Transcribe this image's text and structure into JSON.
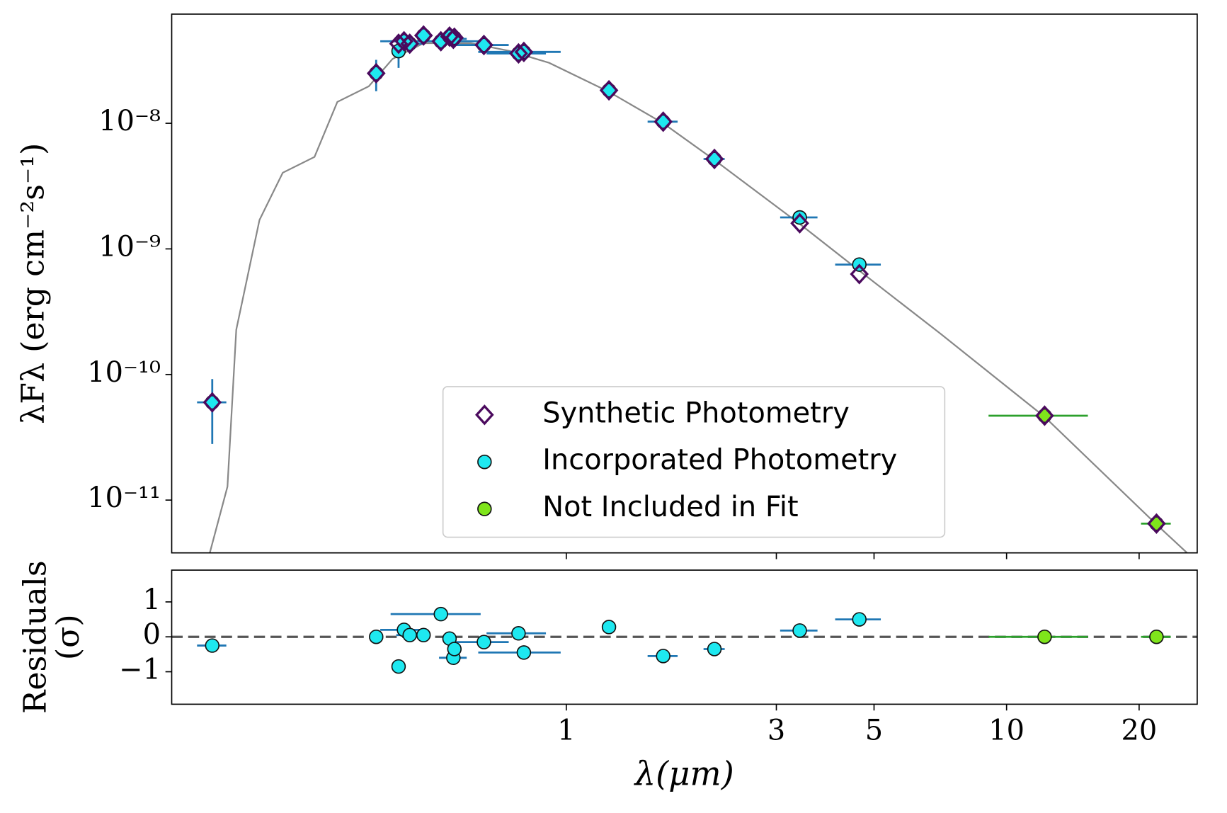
{
  "chart_data": [
    {
      "type": "scatter",
      "xscale": "log",
      "yscale": "log",
      "ylabel": "λFλ (erg cm⁻²s⁻¹)",
      "xlim": [
        0.127,
        27.1
      ],
      "ylim": [
        3.8e-12,
        7.4e-08
      ],
      "yticks": [
        {
          "value": 1e-08,
          "label": "10⁻⁸"
        },
        {
          "value": 1e-09,
          "label": "10⁻⁹"
        },
        {
          "value": 1e-10,
          "label": "10⁻¹⁰"
        },
        {
          "value": 1e-11,
          "label": "10⁻¹¹"
        }
      ],
      "legend": "lower center",
      "series": [
        {
          "marker": "line",
          "color": "#888888",
          "x": [
            0.155,
            0.17,
            0.178,
            0.201,
            0.227,
            0.268,
            0.302,
            0.356,
            0.403,
            0.474,
            0.607,
            0.745,
            0.914,
            1.25,
            1.66,
            2.17,
            3.39,
            4.63,
            7.08,
            12.2,
            21.9,
            25.7
          ],
          "values": [
            3.8e-12,
            1.28e-11,
            2.27e-10,
            1.7e-09,
            4.04e-09,
            5.4e-09,
            1.48e-08,
            1.97e-08,
            3.25e-08,
            4.34e-08,
            4.34e-08,
            3.76e-08,
            3.03e-08,
            1.78e-08,
            1e-08,
            5.1e-09,
            1.58e-09,
            6.7e-10,
            2.11e-10,
            4.6e-11,
            6.4e-12,
            3.8e-12
          ]
        },
        {
          "name": "Synthetic Photometry",
          "marker": "diamond",
          "color": "#4b0a5e",
          "x": [
            0.157,
            0.37,
            0.416,
            0.428,
            0.441,
            0.474,
            0.519,
            0.543,
            0.554,
            0.557,
            0.65,
            0.779,
            0.801,
            1.25,
            1.66,
            2.17,
            3.39,
            4.63,
            12.2,
            21.9
          ],
          "values": [
            6e-11,
            2.5e-08,
            4.3e-08,
            4.5e-08,
            4.3e-08,
            5e-08,
            4.5e-08,
            4.9e-08,
            4.7e-08,
            4.8e-08,
            4.2e-08,
            3.6e-08,
            3.7e-08,
            1.83e-08,
            1.03e-08,
            5.2e-09,
            1.6e-09,
            6.3e-10,
            4.7e-11,
            6.5e-12
          ]
        },
        {
          "name": "Incorporated Photometry",
          "marker": "circle",
          "color": "#1ee8f0",
          "err_color": "#1f77b4",
          "x": [
            0.157,
            0.37,
            0.416,
            0.428,
            0.441,
            0.474,
            0.519,
            0.543,
            0.554,
            0.557,
            0.65,
            0.779,
            0.801,
            1.25,
            1.66,
            2.17,
            3.39,
            4.63
          ],
          "values": [
            6e-11,
            2.5e-08,
            3.76e-08,
            4.5e-08,
            4.3e-08,
            5e-08,
            4.5e-08,
            4.9e-08,
            4.7e-08,
            4.8e-08,
            4.2e-08,
            3.6e-08,
            3.7e-08,
            1.83e-08,
            1.03e-08,
            5.2e-09,
            1.78e-09,
            7.5e-10
          ],
          "x_err": [
            0.012,
            0.012,
            0.01,
            0.05,
            0.03,
            0.01,
            0.12,
            0.01,
            0.04,
            0.02,
            0.09,
            0.12,
            0.17,
            0.03,
            0.13,
            0.12,
            0.33,
            0.55
          ],
          "y_err": [
            3.2e-11,
            7e-09,
            1e-08,
            0,
            0,
            0,
            0,
            0,
            0,
            0,
            0,
            0,
            0,
            0,
            0,
            0,
            0,
            0
          ]
        },
        {
          "name": "Not Included in Fit",
          "marker": "circle",
          "color": "#7fe51b",
          "err_color": "#2ca02c",
          "x": [
            12.2,
            21.9
          ],
          "values": [
            4.7e-11,
            6.5e-12
          ],
          "x_err": [
            3.1,
            1.7
          ]
        }
      ]
    },
    {
      "type": "scatter",
      "xscale": "log",
      "xlabel": "λ(μm)",
      "ylabel": [
        "Residuals",
        "(σ)"
      ],
      "xlim": [
        0.127,
        27.1
      ],
      "ylim": [
        -1.93,
        1.91
      ],
      "xticks": [
        1,
        3,
        5,
        10,
        20
      ],
      "yticks": [
        1,
        0,
        {
          "value": -1,
          "label": "−1"
        }
      ],
      "hline": 0,
      "series": [
        {
          "marker": "circle",
          "color": "#1ee8f0",
          "err_color": "#1f77b4",
          "x": [
            0.157,
            0.37,
            0.416,
            0.428,
            0.441,
            0.474,
            0.519,
            0.543,
            0.554,
            0.557,
            0.65,
            0.779,
            0.801,
            1.25,
            1.66,
            2.17,
            3.39,
            4.63
          ],
          "values": [
            -0.25,
            0,
            -0.85,
            0.2,
            0.05,
            0.05,
            0.65,
            -0.05,
            -0.6,
            -0.35,
            -0.15,
            0.1,
            -0.45,
            0.28,
            -0.55,
            -0.35,
            0.18,
            0.5
          ],
          "x_err": [
            0.012,
            0.012,
            0.01,
            0.05,
            0.03,
            0.01,
            0.12,
            0.01,
            0.04,
            0.02,
            0.09,
            0.12,
            0.17,
            0.03,
            0.13,
            0.12,
            0.33,
            0.55
          ]
        },
        {
          "marker": "circle",
          "color": "#7fe51b",
          "err_color": "#2ca02c",
          "x": [
            12.2,
            21.9
          ],
          "values": [
            0,
            0
          ],
          "x_err": [
            3.1,
            1.7
          ]
        }
      ]
    }
  ]
}
